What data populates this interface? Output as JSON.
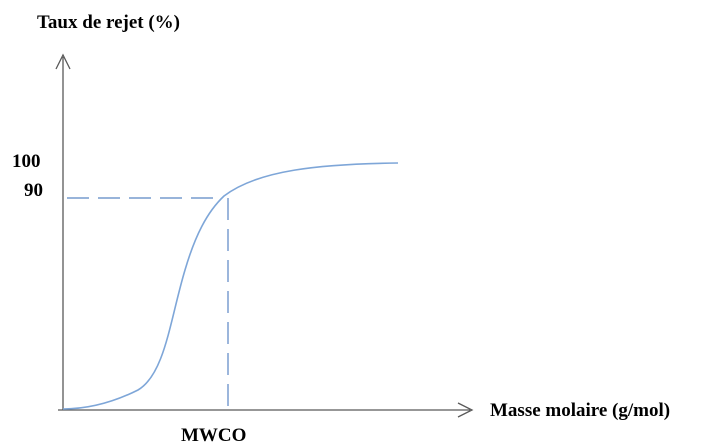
{
  "y_axis_label": "Taux de rejet (%)",
  "x_axis_label": "Masse molaire (g/mol)",
  "y_tick_100": "100",
  "y_tick_90": "90",
  "x_marker_label": "MWCO",
  "colors": {
    "curve": "#7ea6d8",
    "dashed_guides": "#5b86c4",
    "axes": "#595959",
    "text": "#000000"
  }
}
